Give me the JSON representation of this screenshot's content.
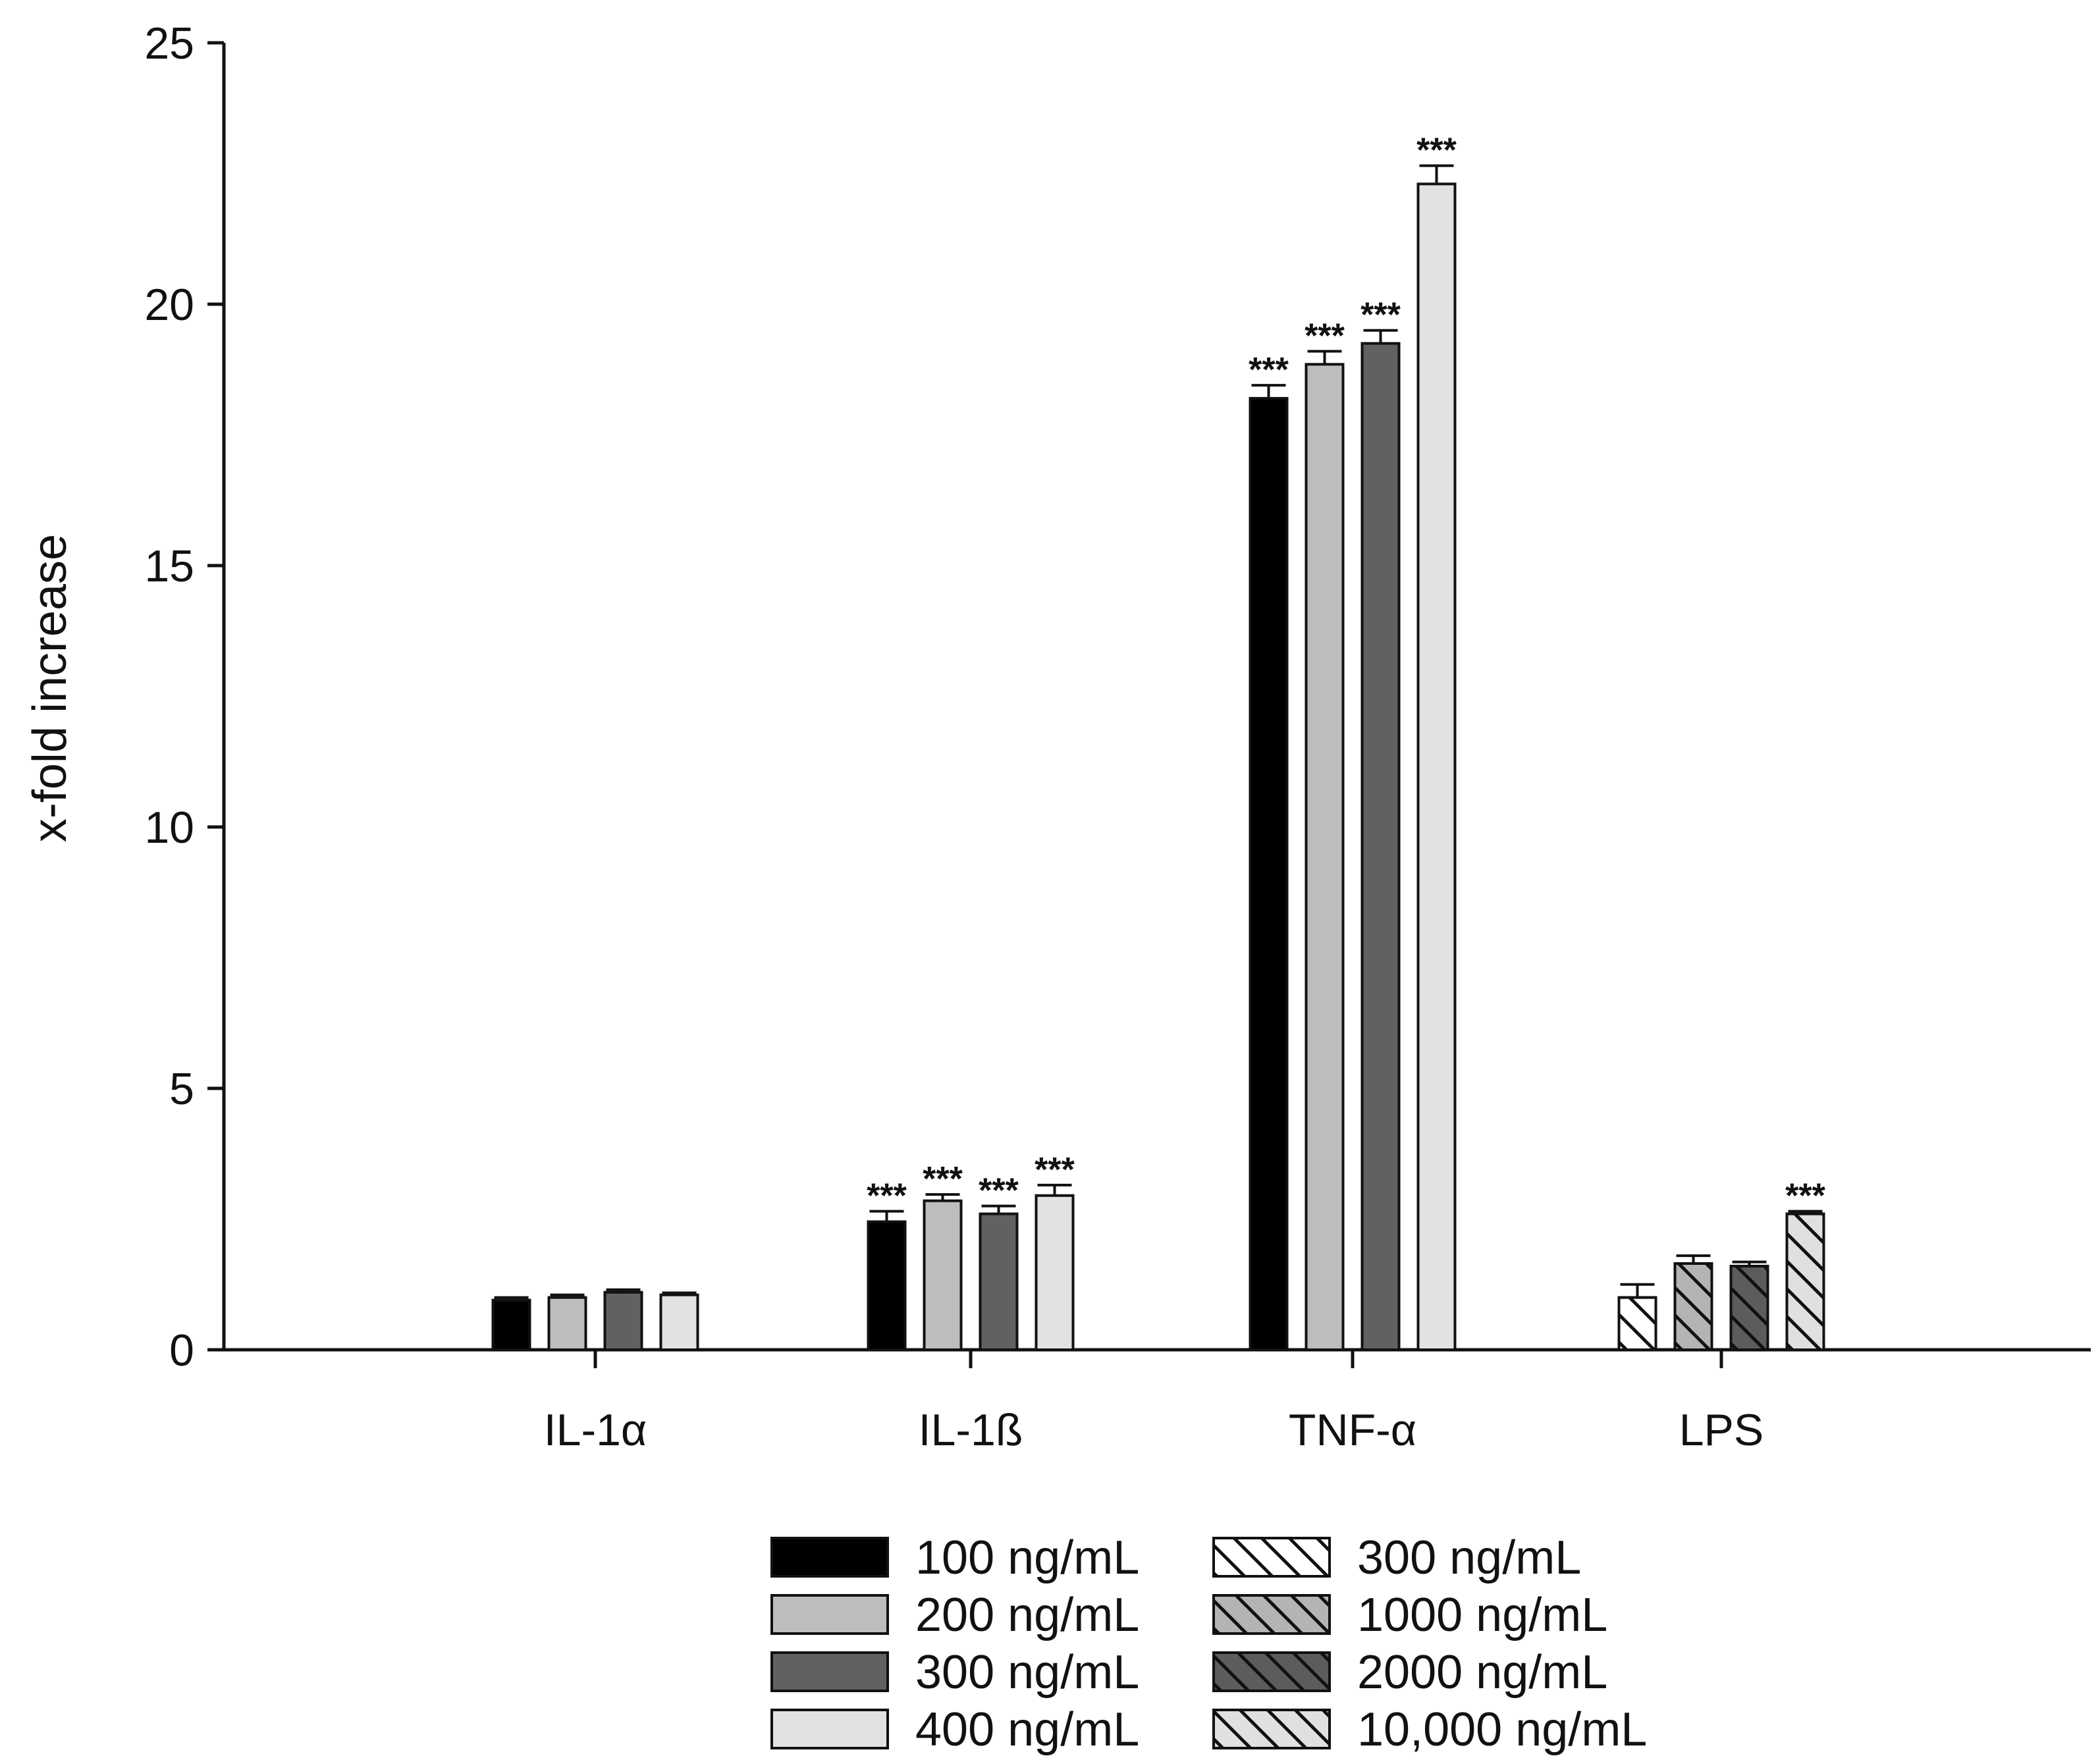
{
  "chart_data": {
    "type": "bar",
    "title": "",
    "xlabel": "",
    "ylabel": "x-fold increase",
    "ylim": [
      0,
      25
    ],
    "yticks": [
      0,
      5,
      10,
      15,
      20,
      25
    ],
    "grid": false,
    "legend_position": "bottom",
    "categories": [
      {
        "label": "IL-1α",
        "bars": [
          {
            "series": "100 ng/mL",
            "value": 0.95,
            "error": 0.05,
            "sig": ""
          },
          {
            "series": "200 ng/mL",
            "value": 1.0,
            "error": 0.05,
            "sig": ""
          },
          {
            "series": "300 ng/mL",
            "value": 1.1,
            "error": 0.05,
            "sig": ""
          },
          {
            "series": "400 ng/mL",
            "value": 1.05,
            "error": 0.04,
            "sig": ""
          }
        ]
      },
      {
        "label": "IL-1ß",
        "bars": [
          {
            "series": "100 ng/mL",
            "value": 2.45,
            "error": 0.2,
            "sig": "***"
          },
          {
            "series": "200 ng/mL",
            "value": 2.85,
            "error": 0.12,
            "sig": "***"
          },
          {
            "series": "300 ng/mL",
            "value": 2.6,
            "error": 0.15,
            "sig": "***"
          },
          {
            "series": "400 ng/mL",
            "value": 2.95,
            "error": 0.2,
            "sig": "***"
          }
        ]
      },
      {
        "label": "TNF-α",
        "bars": [
          {
            "series": "100 ng/mL",
            "value": 18.2,
            "error": 0.25,
            "sig": "***"
          },
          {
            "series": "200 ng/mL",
            "value": 18.85,
            "error": 0.25,
            "sig": "***"
          },
          {
            "series": "300 ng/mL",
            "value": 19.25,
            "error": 0.25,
            "sig": "***"
          },
          {
            "series": "400 ng/mL",
            "value": 22.3,
            "error": 0.35,
            "sig": "***"
          }
        ]
      },
      {
        "label": "LPS",
        "bars": [
          {
            "series": "300 ng/mL (LPS)",
            "value": 1.0,
            "error": 0.25,
            "sig": ""
          },
          {
            "series": "1000 ng/mL",
            "value": 1.65,
            "error": 0.15,
            "sig": ""
          },
          {
            "series": "2000 ng/mL",
            "value": 1.6,
            "error": 0.08,
            "sig": ""
          },
          {
            "series": "10,000 ng/mL",
            "value": 2.6,
            "error": 0.05,
            "sig": "***"
          }
        ]
      }
    ],
    "series": [
      {
        "name": "100 ng/mL",
        "label": "100 ng/mL",
        "fill": "#000000",
        "hatch": false
      },
      {
        "name": "200 ng/mL",
        "label": "200 ng/mL",
        "fill": "#bdbdbd",
        "hatch": false
      },
      {
        "name": "300 ng/mL",
        "label": "300 ng/mL",
        "fill": "#616161",
        "hatch": false
      },
      {
        "name": "400 ng/mL",
        "label": "400 ng/mL",
        "fill": "#e2e2e2",
        "hatch": false
      },
      {
        "name": "300 ng/mL (LPS)",
        "label": "300 ng/mL",
        "fill": "#ffffff",
        "hatch": true
      },
      {
        "name": "1000 ng/mL",
        "label": "1000 ng/mL",
        "fill": "#b4b4b4",
        "hatch": true
      },
      {
        "name": "2000 ng/mL",
        "label": "2000 ng/mL",
        "fill": "#5c5c5c",
        "hatch": true
      },
      {
        "name": "10,000 ng/mL",
        "label": "10,000 ng/mL",
        "fill": "#e0e0e0",
        "hatch": true
      }
    ]
  }
}
